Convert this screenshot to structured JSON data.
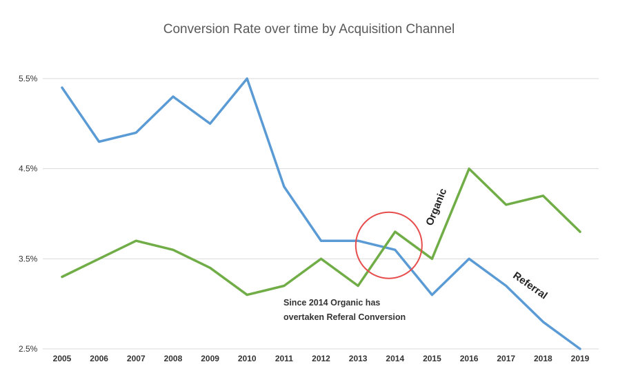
{
  "chart_data": {
    "type": "line",
    "title": "Conversion Rate over time by Acquisition Channel",
    "xlabel": "",
    "ylabel": "",
    "categories": [
      "2005",
      "2006",
      "2007",
      "2008",
      "2009",
      "2010",
      "2011",
      "2012",
      "2013",
      "2014",
      "2015",
      "2016",
      "2017",
      "2018",
      "2019"
    ],
    "yticks": [
      {
        "value": 2.5,
        "label": "2.5%"
      },
      {
        "value": 3.5,
        "label": "3.5%"
      },
      {
        "value": 4.5,
        "label": "4.5%"
      },
      {
        "value": 5.5,
        "label": "5.5%"
      }
    ],
    "ylim": [
      2.5,
      5.5
    ],
    "grid": true,
    "series": [
      {
        "name": "Referral",
        "color": "#5b9bd5",
        "values": [
          5.4,
          4.8,
          4.9,
          5.3,
          5.0,
          5.5,
          4.3,
          3.7,
          3.7,
          3.6,
          3.1,
          3.5,
          3.2,
          2.8,
          2.5
        ]
      },
      {
        "name": "Organic",
        "color": "#70ad47",
        "values": [
          3.3,
          3.5,
          3.7,
          3.6,
          3.4,
          3.1,
          3.2,
          3.5,
          3.2,
          3.8,
          3.5,
          4.5,
          4.1,
          4.2,
          3.8
        ]
      }
    ],
    "annotations": {
      "note_lines": [
        "Since 2014 Organic has",
        "overtaken Referal Conversion"
      ],
      "highlight_category": "2014",
      "highlight_value": 3.65,
      "highlight_color": "#e84c4c"
    }
  }
}
